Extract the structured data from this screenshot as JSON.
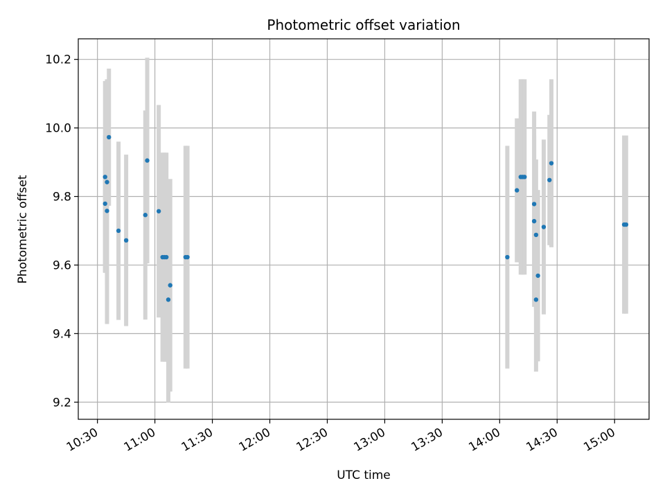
{
  "chart_data": {
    "type": "scatter",
    "title": "Photometric offset variation",
    "xlabel": "UTC time",
    "ylabel": "Photometric offset",
    "x_unit": "UTC time (HH:MM)",
    "xlim": [
      "10:20",
      "15:18"
    ],
    "ylim": [
      9.15,
      10.26
    ],
    "x_ticks": [
      "10:30",
      "11:00",
      "11:30",
      "12:00",
      "12:30",
      "13:00",
      "13:30",
      "14:00",
      "14:30",
      "15:00"
    ],
    "y_ticks": [
      9.2,
      9.4,
      9.6,
      9.8,
      10.0,
      10.2
    ],
    "y_tick_labels": [
      "9.2",
      "9.4",
      "9.6",
      "9.8",
      "10.0",
      "10.2"
    ],
    "grid": true,
    "colors": {
      "points": "#1f77b4",
      "error_bars": "#d3d3d3",
      "grid": "#b0b0b0"
    },
    "points": [
      {
        "x": "10:34",
        "y": 9.857,
        "yerr": 0.28
      },
      {
        "x": "10:34",
        "y": 9.779,
        "yerr": 0.2
      },
      {
        "x": "10:35",
        "y": 9.758,
        "yerr": 0.33
      },
      {
        "x": "10:35",
        "y": 9.842,
        "yerr": 0.3
      },
      {
        "x": "10:36",
        "y": 9.973,
        "yerr": 0.2
      },
      {
        "x": "10:41",
        "y": 9.7,
        "yerr": 0.26
      },
      {
        "x": "10:45",
        "y": 9.672,
        "yerr": 0.25
      },
      {
        "x": "10:55",
        "y": 9.746,
        "yerr": 0.305
      },
      {
        "x": "10:56",
        "y": 9.905,
        "yerr": 0.3
      },
      {
        "x": "11:02",
        "y": 9.757,
        "yerr": 0.31
      },
      {
        "x": "11:04",
        "y": 9.623,
        "yerr": 0.305
      },
      {
        "x": "11:05",
        "y": 9.623,
        "yerr": 0.305
      },
      {
        "x": "11:06",
        "y": 9.623,
        "yerr": 0.305
      },
      {
        "x": "11:07",
        "y": 9.499,
        "yerr": 0.3
      },
      {
        "x": "11:08",
        "y": 9.541,
        "yerr": 0.31
      },
      {
        "x": "11:16",
        "y": 9.623,
        "yerr": 0.325
      },
      {
        "x": "11:17",
        "y": 9.623,
        "yerr": 0.325
      },
      {
        "x": "14:04",
        "y": 9.623,
        "yerr": 0.325
      },
      {
        "x": "14:09",
        "y": 9.818,
        "yerr": 0.21
      },
      {
        "x": "14:11",
        "y": 9.857,
        "yerr": 0.285
      },
      {
        "x": "14:12",
        "y": 9.857,
        "yerr": 0.285
      },
      {
        "x": "14:13",
        "y": 9.857,
        "yerr": 0.285
      },
      {
        "x": "14:18",
        "y": 9.778,
        "yerr": 0.27
      },
      {
        "x": "14:18",
        "y": 9.728,
        "yerr": 0.25
      },
      {
        "x": "14:19",
        "y": 9.688,
        "yerr": 0.22
      },
      {
        "x": "14:19",
        "y": 9.499,
        "yerr": 0.21
      },
      {
        "x": "14:20",
        "y": 9.569,
        "yerr": 0.25
      },
      {
        "x": "14:23",
        "y": 9.711,
        "yerr": 0.255
      },
      {
        "x": "14:26",
        "y": 9.848,
        "yerr": 0.19
      },
      {
        "x": "14:27",
        "y": 9.897,
        "yerr": 0.245
      },
      {
        "x": "15:05",
        "y": 9.718,
        "yerr": 0.26
      },
      {
        "x": "15:06",
        "y": 9.718,
        "yerr": 0.26
      }
    ]
  }
}
